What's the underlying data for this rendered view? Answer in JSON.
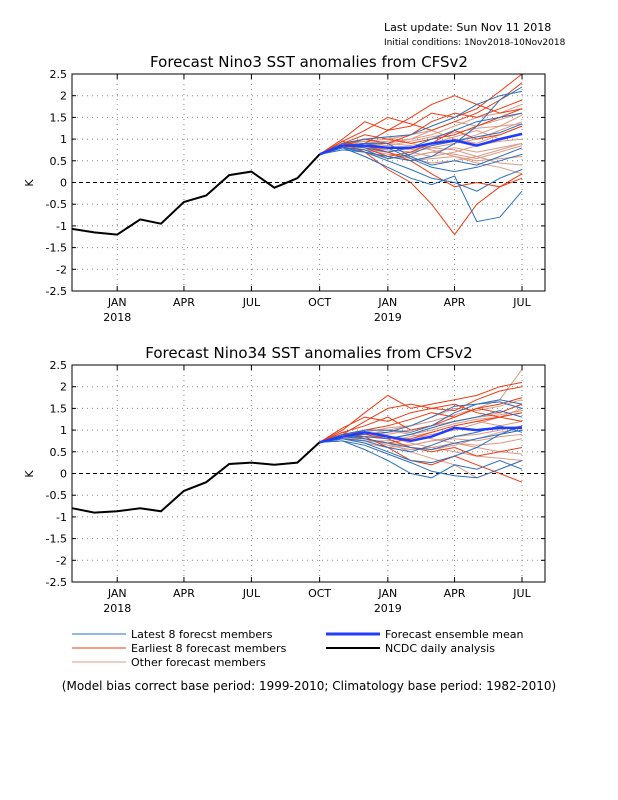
{
  "header": {
    "last_update": "Last update: Sun Nov 11 2018",
    "initial_conditions": "Initial conditions: 1Nov2018-10Nov2018"
  },
  "legend": {
    "latest": "Latest 8 forecst members",
    "earliest": "Earliest 8 forecast members",
    "other": "Other forecast members",
    "mean": "Forecast ensemble mean",
    "obs": "NCDC daily analysis"
  },
  "footnote": "(Model bias correct base period: 1999-2010; Climatology base period: 1982-2010)",
  "colors": {
    "latest": "#2a6fc0",
    "earliest": "#ee3c14",
    "other": "#dc9a86",
    "mean": "#1f3cff",
    "obs": "#000000"
  },
  "chart_data": [
    {
      "type": "line",
      "title": "Forecast Nino3 SST anomalies from CFSv2",
      "ylabel": "K",
      "ylim": [
        -2.5,
        2.5
      ],
      "yticks": [
        2.5,
        2,
        1.5,
        1,
        0.5,
        0,
        -0.5,
        -1,
        -1.5,
        -2,
        -2.5
      ],
      "ytick_labels": [
        "2.5",
        "2",
        "1.5",
        "1",
        "0.5",
        "0",
        "-0.5",
        "-1",
        "-1.5",
        "-2",
        "-2.5"
      ],
      "xlim": [
        "2017-11-01",
        "2019-08-01"
      ],
      "xticks": [
        "2018-01-01",
        "2018-04-01",
        "2018-07-01",
        "2018-10-01",
        "2019-01-01",
        "2019-04-01",
        "2019-07-01"
      ],
      "xtick_labels": [
        "JAN",
        "APR",
        "JUL",
        "OCT",
        "JAN",
        "APR",
        "JUL"
      ],
      "year_labels": [
        {
          "x": "2018-01-01",
          "label": "2018"
        },
        {
          "x": "2019-01-01",
          "label": "2019"
        }
      ],
      "grid": true,
      "zero_line": true,
      "observed": {
        "name": "NCDC daily analysis",
        "x": [
          "2017-11-01",
          "2017-12-01",
          "2018-01-01",
          "2018-02-01",
          "2018-03-01",
          "2018-04-01",
          "2018-05-01",
          "2018-06-01",
          "2018-07-01",
          "2018-08-01",
          "2018-09-01",
          "2018-10-01"
        ],
        "y": [
          -1.07,
          -1.15,
          -1.2,
          -0.85,
          -0.95,
          -0.45,
          -0.3,
          0.17,
          0.25,
          -0.12,
          0.1,
          0.65
        ]
      },
      "forecast_x": [
        "2018-10-01",
        "2018-11-01",
        "2018-12-01",
        "2019-01-01",
        "2019-02-01",
        "2019-03-01",
        "2019-04-01",
        "2019-05-01",
        "2019-06-01",
        "2019-07-01"
      ],
      "ensemble_mean": {
        "name": "Forecast ensemble mean",
        "y": [
          0.65,
          0.85,
          0.85,
          0.8,
          0.8,
          0.9,
          0.97,
          0.85,
          1.0,
          1.12
        ]
      },
      "members_latest": [
        [
          0.65,
          0.8,
          0.6,
          0.35,
          0.1,
          -0.05,
          0.15,
          -0.9,
          -0.8,
          -0.2
        ],
        [
          0.65,
          0.75,
          0.7,
          0.6,
          0.5,
          0.6,
          0.9,
          1.3,
          1.9,
          2.2
        ],
        [
          0.65,
          0.85,
          0.9,
          0.9,
          0.6,
          0.4,
          0.5,
          0.4,
          0.6,
          0.8
        ],
        [
          0.65,
          0.9,
          1.0,
          1.05,
          1.1,
          1.3,
          1.5,
          1.8,
          2.0,
          2.1
        ],
        [
          0.65,
          0.8,
          0.7,
          0.5,
          0.3,
          0.1,
          0.0,
          -0.2,
          0.1,
          0.3
        ],
        [
          0.65,
          0.85,
          0.8,
          0.7,
          0.8,
          1.0,
          1.2,
          1.4,
          1.5,
          1.6
        ],
        [
          0.65,
          0.8,
          0.75,
          0.55,
          0.65,
          0.85,
          0.95,
          1.05,
          1.15,
          1.35
        ],
        [
          0.65,
          0.85,
          0.9,
          0.8,
          0.55,
          0.35,
          0.25,
          0.35,
          0.5,
          0.65
        ]
      ],
      "members_earliest": [
        [
          0.65,
          0.95,
          1.2,
          1.5,
          1.35,
          1.2,
          1.4,
          1.6,
          1.9,
          2.3
        ],
        [
          0.65,
          0.9,
          0.7,
          0.3,
          0.0,
          -0.5,
          -1.2,
          -0.5,
          -0.1,
          0.2
        ],
        [
          0.65,
          1.0,
          1.4,
          1.2,
          1.3,
          1.6,
          1.5,
          1.7,
          2.1,
          2.5
        ],
        [
          0.65,
          0.9,
          1.1,
          1.0,
          0.9,
          1.0,
          1.1,
          1.3,
          1.5,
          1.7
        ],
        [
          0.65,
          0.85,
          1.0,
          0.9,
          1.1,
          1.4,
          1.6,
          1.5,
          1.7,
          1.9
        ],
        [
          0.65,
          0.95,
          0.8,
          0.6,
          0.7,
          0.9,
          1.2,
          1.0,
          1.1,
          1.3
        ],
        [
          0.65,
          0.8,
          0.9,
          1.2,
          1.5,
          1.8,
          2.0,
          1.8,
          1.6,
          1.7
        ],
        [
          0.65,
          0.9,
          0.85,
          0.7,
          0.5,
          0.2,
          -0.1,
          0.0,
          -0.1,
          0.1
        ]
      ],
      "members_other": [
        [
          0.65,
          0.85,
          0.95,
          1.0,
          1.1,
          1.2,
          1.0,
          0.9,
          1.1,
          1.3
        ],
        [
          0.65,
          0.8,
          0.75,
          0.65,
          0.6,
          0.7,
          0.8,
          0.7,
          0.8,
          0.9
        ],
        [
          0.65,
          0.9,
          0.85,
          0.75,
          0.7,
          0.8,
          0.9,
          1.0,
          1.2,
          1.4
        ],
        [
          0.65,
          0.85,
          0.8,
          0.6,
          0.5,
          0.55,
          0.6,
          0.5,
          0.55,
          0.6
        ],
        [
          0.65,
          0.8,
          0.9,
          0.95,
          1.0,
          1.1,
          1.3,
          1.5,
          1.6,
          1.8
        ],
        [
          0.65,
          0.9,
          1.0,
          1.05,
          0.9,
          0.8,
          0.75,
          0.6,
          0.45,
          0.4
        ],
        [
          0.65,
          0.8,
          0.7,
          0.55,
          0.6,
          0.7,
          0.65,
          0.55,
          0.7,
          0.85
        ],
        [
          0.65,
          0.85,
          0.9,
          0.85,
          0.95,
          1.05,
          1.15,
          1.25,
          1.3,
          1.35
        ],
        [
          0.65,
          0.8,
          0.85,
          0.8,
          0.75,
          0.85,
          0.95,
          1.1,
          1.3,
          1.55
        ],
        [
          0.65,
          0.9,
          0.95,
          0.9,
          0.85,
          0.75,
          0.6,
          0.45,
          0.35,
          0.2
        ],
        [
          0.65,
          0.85,
          0.75,
          0.7,
          0.8,
          0.9,
          1.05,
          1.2,
          1.0,
          1.1
        ],
        [
          0.65,
          0.8,
          0.8,
          0.75,
          0.7,
          0.6,
          0.7,
          0.85,
          0.95,
          1.0
        ],
        [
          0.65,
          0.9,
          0.85,
          0.9,
          1.0,
          1.2,
          1.4,
          1.3,
          1.45,
          1.6
        ],
        [
          0.65,
          0.85,
          0.8,
          0.7,
          0.55,
          0.45,
          0.5,
          0.6,
          0.75,
          0.9
        ]
      ]
    },
    {
      "type": "line",
      "title": "Forecast Nino34 SST anomalies from CFSv2",
      "ylabel": "K",
      "ylim": [
        -2.5,
        2.5
      ],
      "yticks": [
        2.5,
        2,
        1.5,
        1,
        0.5,
        0,
        -0.5,
        -1,
        -1.5,
        -2,
        -2.5
      ],
      "ytick_labels": [
        "2.5",
        "2",
        "1.5",
        "1",
        "0.5",
        "0",
        "-0.5",
        "-1",
        "-1.5",
        "-2",
        "-2.5"
      ],
      "xlim": [
        "2017-11-01",
        "2019-08-01"
      ],
      "xticks": [
        "2018-01-01",
        "2018-04-01",
        "2018-07-01",
        "2018-10-01",
        "2019-01-01",
        "2019-04-01",
        "2019-07-01"
      ],
      "xtick_labels": [
        "JAN",
        "APR",
        "JUL",
        "OCT",
        "JAN",
        "APR",
        "JUL"
      ],
      "year_labels": [
        {
          "x": "2018-01-01",
          "label": "2018"
        },
        {
          "x": "2019-01-01",
          "label": "2019"
        }
      ],
      "grid": true,
      "zero_line": true,
      "observed": {
        "name": "NCDC daily analysis",
        "x": [
          "2017-11-01",
          "2017-12-01",
          "2018-01-01",
          "2018-02-01",
          "2018-03-01",
          "2018-04-01",
          "2018-05-01",
          "2018-06-01",
          "2018-07-01",
          "2018-08-01",
          "2018-09-01",
          "2018-10-01"
        ],
        "y": [
          -0.8,
          -0.9,
          -0.87,
          -0.8,
          -0.87,
          -0.4,
          -0.2,
          0.22,
          0.25,
          0.2,
          0.25,
          0.72
        ]
      },
      "forecast_x": [
        "2018-10-01",
        "2018-11-01",
        "2018-12-01",
        "2019-01-01",
        "2019-02-01",
        "2019-03-01",
        "2019-04-01",
        "2019-05-01",
        "2019-06-01",
        "2019-07-01"
      ],
      "ensemble_mean": {
        "name": "Forecast ensemble mean",
        "y": [
          0.72,
          0.85,
          0.95,
          0.85,
          0.75,
          0.85,
          1.05,
          1.0,
          1.05,
          1.05
        ]
      },
      "members_latest": [
        [
          0.72,
          0.75,
          0.55,
          0.3,
          0.0,
          -0.1,
          0.2,
          0.1,
          0.3,
          0.1
        ],
        [
          0.72,
          0.85,
          0.9,
          0.95,
          1.1,
          1.3,
          1.55,
          1.6,
          1.7,
          1.6
        ],
        [
          0.72,
          0.8,
          0.7,
          0.5,
          0.3,
          0.25,
          0.4,
          0.6,
          0.9,
          1.1
        ],
        [
          0.72,
          0.9,
          1.0,
          1.0,
          0.95,
          1.1,
          1.4,
          1.6,
          1.65,
          1.5
        ],
        [
          0.72,
          0.75,
          0.65,
          0.45,
          0.25,
          0.05,
          -0.05,
          -0.1,
          0.1,
          0.3
        ],
        [
          0.72,
          0.85,
          0.85,
          0.8,
          0.9,
          1.05,
          1.2,
          1.3,
          1.45,
          1.3
        ],
        [
          0.72,
          0.8,
          0.75,
          0.6,
          0.5,
          0.65,
          0.85,
          0.95,
          1.1,
          0.95
        ],
        [
          0.72,
          0.85,
          0.8,
          0.7,
          0.6,
          0.55,
          0.7,
          0.8,
          0.9,
          1.0
        ]
      ],
      "members_earliest": [
        [
          0.72,
          1.0,
          1.4,
          1.8,
          1.5,
          1.6,
          1.7,
          1.8,
          2.0,
          2.1
        ],
        [
          0.72,
          0.9,
          0.85,
          0.6,
          0.3,
          0.2,
          0.4,
          0.2,
          0.0,
          -0.2
        ],
        [
          0.72,
          1.05,
          1.3,
          1.2,
          1.4,
          1.5,
          1.45,
          1.7,
          1.9,
          2.0
        ],
        [
          0.72,
          0.95,
          1.1,
          1.3,
          1.0,
          1.1,
          1.3,
          1.5,
          1.4,
          1.6
        ],
        [
          0.72,
          0.9,
          1.2,
          1.5,
          1.6,
          1.5,
          1.6,
          1.4,
          1.3,
          1.4
        ],
        [
          0.72,
          0.95,
          0.8,
          0.7,
          0.8,
          0.95,
          1.1,
          1.2,
          1.3,
          1.2
        ],
        [
          0.72,
          0.85,
          1.0,
          1.1,
          1.25,
          1.4,
          1.3,
          1.5,
          1.6,
          1.75
        ],
        [
          0.72,
          0.9,
          0.9,
          0.8,
          0.6,
          0.5,
          0.6,
          0.4,
          0.5,
          0.6
        ]
      ],
      "members_other": [
        [
          0.72,
          0.85,
          0.9,
          0.95,
          1.0,
          1.1,
          1.2,
          1.3,
          1.4,
          1.6
        ],
        [
          0.72,
          0.8,
          0.75,
          0.7,
          0.65,
          0.75,
          0.85,
          0.9,
          1.0,
          1.1
        ],
        [
          0.72,
          0.9,
          0.85,
          0.8,
          0.9,
          1.0,
          1.15,
          1.25,
          1.3,
          1.5
        ],
        [
          0.72,
          0.85,
          0.8,
          0.65,
          0.55,
          0.6,
          0.7,
          0.65,
          0.7,
          0.8
        ],
        [
          0.72,
          0.8,
          0.95,
          1.05,
          1.1,
          1.2,
          1.35,
          1.5,
          1.7,
          2.4
        ],
        [
          0.72,
          0.9,
          1.0,
          1.0,
          0.9,
          0.8,
          0.7,
          0.6,
          0.5,
          0.45
        ],
        [
          0.72,
          0.8,
          0.7,
          0.6,
          0.65,
          0.75,
          0.8,
          0.75,
          0.85,
          0.9
        ],
        [
          0.72,
          0.85,
          0.95,
          0.9,
          1.0,
          1.1,
          1.2,
          1.3,
          1.35,
          1.45
        ],
        [
          0.72,
          0.8,
          0.85,
          0.85,
          0.8,
          0.9,
          1.0,
          1.15,
          1.3,
          1.4
        ],
        [
          0.72,
          0.9,
          0.95,
          0.85,
          0.7,
          0.6,
          0.5,
          0.4,
          0.35,
          0.3
        ],
        [
          0.72,
          0.85,
          0.75,
          0.75,
          0.85,
          0.95,
          1.1,
          1.2,
          1.1,
          1.2
        ],
        [
          0.72,
          0.8,
          0.8,
          0.7,
          0.6,
          0.55,
          0.65,
          0.8,
          0.95,
          1.05
        ],
        [
          0.72,
          0.9,
          0.9,
          1.0,
          1.1,
          1.3,
          1.5,
          1.45,
          1.55,
          1.7
        ],
        [
          0.72,
          0.85,
          0.8,
          0.7,
          0.5,
          0.35,
          0.2,
          -0.1,
          0.1,
          0.3
        ]
      ]
    }
  ]
}
